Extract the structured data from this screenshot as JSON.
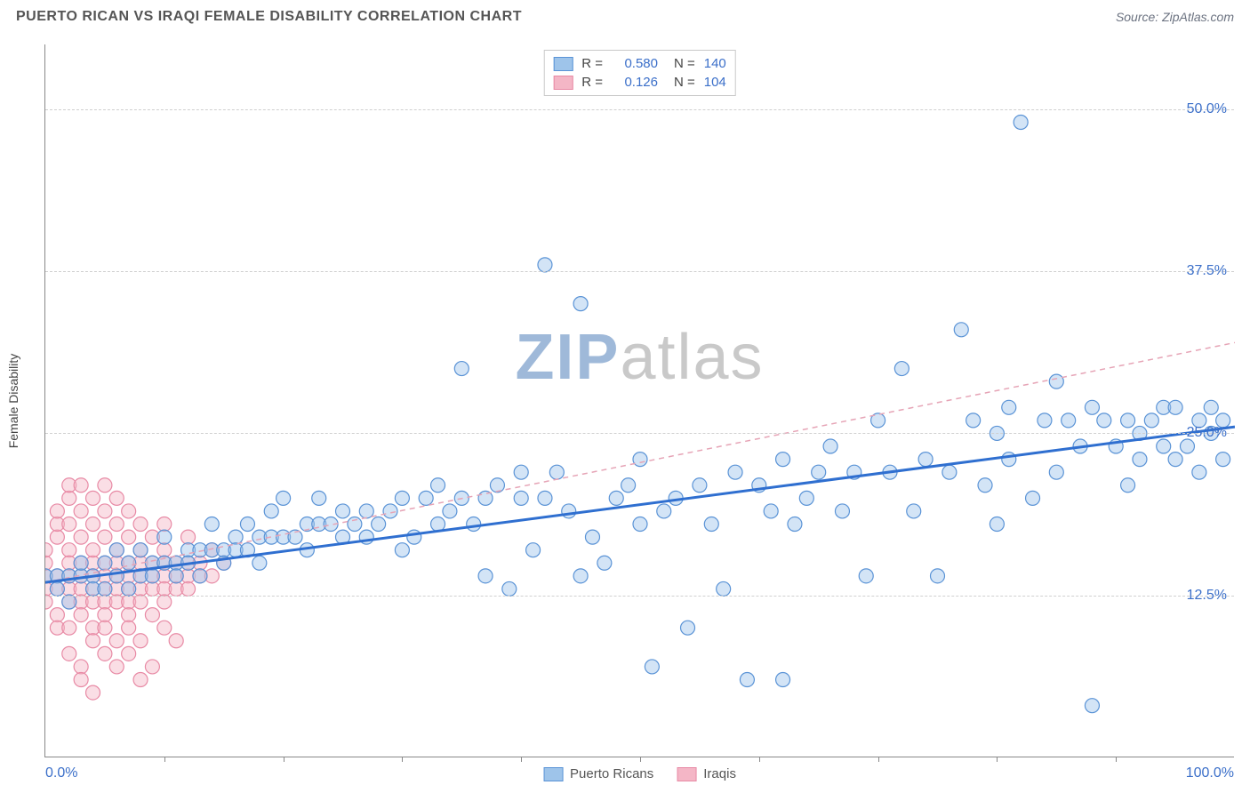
{
  "title": "PUERTO RICAN VS IRAQI FEMALE DISABILITY CORRELATION CHART",
  "source_prefix": "Source: ",
  "source_name": "ZipAtlas.com",
  "ylabel": "Female Disability",
  "watermark_a": "ZIP",
  "watermark_b": "atlas",
  "watermark_color_a": "#9fb9d9",
  "watermark_color_b": "#c9c9c9",
  "chart": {
    "type": "scatter",
    "xlim": [
      0,
      100
    ],
    "ylim": [
      0,
      55
    ],
    "background_color": "#ffffff",
    "grid_color": "#d0d0d0",
    "marker_radius": 8,
    "marker_opacity": 0.45,
    "yticks": [
      {
        "v": 12.5,
        "label": "12.5%"
      },
      {
        "v": 25.0,
        "label": "25.0%"
      },
      {
        "v": 37.5,
        "label": "37.5%"
      },
      {
        "v": 50.0,
        "label": "50.0%"
      }
    ],
    "ytick_color": "#3b6fc9",
    "xticks_minor": [
      10,
      20,
      30,
      40,
      50,
      60,
      70,
      80,
      90
    ],
    "xticks_labeled": [
      {
        "v": 0,
        "label": "0.0%",
        "align": "left"
      },
      {
        "v": 100,
        "label": "100.0%",
        "align": "right"
      }
    ],
    "xtick_color": "#3b6fc9",
    "series": [
      {
        "name": "Puerto Ricans",
        "color_fill": "#9ec4ea",
        "color_stroke": "#5a93d6",
        "regression": {
          "x1": 0,
          "y1": 13.5,
          "x2": 100,
          "y2": 25.5,
          "stroke": "#2f6fd0",
          "width": 3,
          "dash": "none"
        },
        "r": "0.580",
        "n": "140",
        "points": [
          [
            0,
            14
          ],
          [
            1,
            14
          ],
          [
            1,
            13
          ],
          [
            2,
            14
          ],
          [
            2,
            12
          ],
          [
            3,
            14
          ],
          [
            3,
            15
          ],
          [
            4,
            14
          ],
          [
            4,
            13
          ],
          [
            5,
            15
          ],
          [
            5,
            13
          ],
          [
            6,
            14
          ],
          [
            6,
            16
          ],
          [
            7,
            15
          ],
          [
            7,
            13
          ],
          [
            8,
            14
          ],
          [
            8,
            16
          ],
          [
            9,
            15
          ],
          [
            9,
            14
          ],
          [
            10,
            15
          ],
          [
            10,
            17
          ],
          [
            11,
            15
          ],
          [
            11,
            14
          ],
          [
            12,
            16
          ],
          [
            12,
            15
          ],
          [
            13,
            16
          ],
          [
            13,
            14
          ],
          [
            14,
            16
          ],
          [
            14,
            18
          ],
          [
            15,
            16
          ],
          [
            15,
            15
          ],
          [
            16,
            17
          ],
          [
            16,
            16
          ],
          [
            17,
            16
          ],
          [
            17,
            18
          ],
          [
            18,
            17
          ],
          [
            18,
            15
          ],
          [
            19,
            17
          ],
          [
            19,
            19
          ],
          [
            20,
            17
          ],
          [
            20,
            20
          ],
          [
            21,
            17
          ],
          [
            22,
            18
          ],
          [
            22,
            16
          ],
          [
            23,
            18
          ],
          [
            23,
            20
          ],
          [
            24,
            18
          ],
          [
            25,
            17
          ],
          [
            25,
            19
          ],
          [
            26,
            18
          ],
          [
            27,
            19
          ],
          [
            27,
            17
          ],
          [
            28,
            18
          ],
          [
            29,
            19
          ],
          [
            30,
            20
          ],
          [
            30,
            16
          ],
          [
            31,
            17
          ],
          [
            32,
            20
          ],
          [
            33,
            21
          ],
          [
            33,
            18
          ],
          [
            34,
            19
          ],
          [
            35,
            20
          ],
          [
            35,
            30
          ],
          [
            36,
            18
          ],
          [
            37,
            20
          ],
          [
            37,
            14
          ],
          [
            38,
            21
          ],
          [
            39,
            13
          ],
          [
            40,
            20
          ],
          [
            40,
            22
          ],
          [
            41,
            16
          ],
          [
            42,
            20
          ],
          [
            42,
            38
          ],
          [
            43,
            22
          ],
          [
            44,
            19
          ],
          [
            45,
            35
          ],
          [
            45,
            14
          ],
          [
            46,
            17
          ],
          [
            47,
            15
          ],
          [
            48,
            20
          ],
          [
            49,
            21
          ],
          [
            50,
            23
          ],
          [
            50,
            18
          ],
          [
            51,
            7
          ],
          [
            52,
            19
          ],
          [
            53,
            20
          ],
          [
            54,
            10
          ],
          [
            55,
            21
          ],
          [
            56,
            18
          ],
          [
            57,
            13
          ],
          [
            58,
            22
          ],
          [
            59,
            6
          ],
          [
            60,
            21
          ],
          [
            61,
            19
          ],
          [
            62,
            6
          ],
          [
            62,
            23
          ],
          [
            63,
            18
          ],
          [
            64,
            20
          ],
          [
            65,
            22
          ],
          [
            66,
            24
          ],
          [
            67,
            19
          ],
          [
            68,
            22
          ],
          [
            69,
            14
          ],
          [
            70,
            26
          ],
          [
            71,
            22
          ],
          [
            72,
            30
          ],
          [
            73,
            19
          ],
          [
            74,
            23
          ],
          [
            75,
            14
          ],
          [
            76,
            22
          ],
          [
            77,
            33
          ],
          [
            78,
            26
          ],
          [
            79,
            21
          ],
          [
            80,
            25
          ],
          [
            80,
            18
          ],
          [
            81,
            23
          ],
          [
            81,
            27
          ],
          [
            82,
            49
          ],
          [
            83,
            20
          ],
          [
            84,
            26
          ],
          [
            85,
            29
          ],
          [
            85,
            22
          ],
          [
            86,
            26
          ],
          [
            87,
            24
          ],
          [
            88,
            4
          ],
          [
            88,
            27
          ],
          [
            89,
            26
          ],
          [
            90,
            24
          ],
          [
            91,
            26
          ],
          [
            91,
            21
          ],
          [
            92,
            25
          ],
          [
            92,
            23
          ],
          [
            93,
            26
          ],
          [
            94,
            27
          ],
          [
            94,
            24
          ],
          [
            95,
            23
          ],
          [
            95,
            27
          ],
          [
            96,
            24
          ],
          [
            97,
            26
          ],
          [
            97,
            22
          ],
          [
            98,
            25
          ],
          [
            98,
            27
          ],
          [
            99,
            23
          ],
          [
            99,
            26
          ]
        ]
      },
      {
        "name": "Iraqis",
        "color_fill": "#f4b6c6",
        "color_stroke": "#e88aa5",
        "regression": {
          "x1": 0,
          "y1": 13.5,
          "x2": 100,
          "y2": 32.0,
          "stroke": "#e6a4b6",
          "width": 1.5,
          "dash": "6 5"
        },
        "r": "0.126",
        "n": "104",
        "points": [
          [
            0,
            14
          ],
          [
            0,
            13
          ],
          [
            0,
            15
          ],
          [
            0,
            12
          ],
          [
            0,
            16
          ],
          [
            1,
            14
          ],
          [
            1,
            11
          ],
          [
            1,
            13
          ],
          [
            1,
            17
          ],
          [
            1,
            10
          ],
          [
            1,
            18
          ],
          [
            1,
            19
          ],
          [
            2,
            14
          ],
          [
            2,
            13
          ],
          [
            2,
            12
          ],
          [
            2,
            16
          ],
          [
            2,
            15
          ],
          [
            2,
            10
          ],
          [
            2,
            18
          ],
          [
            2,
            8
          ],
          [
            2,
            20
          ],
          [
            2,
            21
          ],
          [
            3,
            14
          ],
          [
            3,
            13
          ],
          [
            3,
            15
          ],
          [
            3,
            12
          ],
          [
            3,
            17
          ],
          [
            3,
            11
          ],
          [
            3,
            19
          ],
          [
            3,
            7
          ],
          [
            3,
            6
          ],
          [
            3,
            21
          ],
          [
            4,
            14
          ],
          [
            4,
            13
          ],
          [
            4,
            15
          ],
          [
            4,
            12
          ],
          [
            4,
            16
          ],
          [
            4,
            18
          ],
          [
            4,
            10
          ],
          [
            4,
            9
          ],
          [
            4,
            20
          ],
          [
            4,
            5
          ],
          [
            5,
            14
          ],
          [
            5,
            13
          ],
          [
            5,
            15
          ],
          [
            5,
            12
          ],
          [
            5,
            17
          ],
          [
            5,
            11
          ],
          [
            5,
            8
          ],
          [
            5,
            10
          ],
          [
            5,
            19
          ],
          [
            5,
            21
          ],
          [
            6,
            14
          ],
          [
            6,
            13
          ],
          [
            6,
            15
          ],
          [
            6,
            12
          ],
          [
            6,
            16
          ],
          [
            6,
            9
          ],
          [
            6,
            18
          ],
          [
            6,
            20
          ],
          [
            6,
            7
          ],
          [
            7,
            14
          ],
          [
            7,
            13
          ],
          [
            7,
            15
          ],
          [
            7,
            12
          ],
          [
            7,
            17
          ],
          [
            7,
            11
          ],
          [
            7,
            10
          ],
          [
            7,
            19
          ],
          [
            7,
            8
          ],
          [
            8,
            14
          ],
          [
            8,
            13
          ],
          [
            8,
            15
          ],
          [
            8,
            12
          ],
          [
            8,
            16
          ],
          [
            8,
            9
          ],
          [
            8,
            6
          ],
          [
            8,
            18
          ],
          [
            9,
            14
          ],
          [
            9,
            13
          ],
          [
            9,
            15
          ],
          [
            9,
            17
          ],
          [
            9,
            11
          ],
          [
            9,
            7
          ],
          [
            10,
            14
          ],
          [
            10,
            13
          ],
          [
            10,
            15
          ],
          [
            10,
            12
          ],
          [
            10,
            16
          ],
          [
            10,
            10
          ],
          [
            10,
            18
          ],
          [
            11,
            14
          ],
          [
            11,
            13
          ],
          [
            11,
            15
          ],
          [
            11,
            9
          ],
          [
            12,
            14
          ],
          [
            12,
            13
          ],
          [
            12,
            15
          ],
          [
            12,
            17
          ],
          [
            13,
            14
          ],
          [
            13,
            15
          ],
          [
            14,
            14
          ],
          [
            14,
            16
          ],
          [
            15,
            15
          ]
        ]
      }
    ]
  },
  "legend_top_labels": {
    "R": "R =",
    "N": "N ="
  },
  "legend_bottom": [
    {
      "label": "Puerto Ricans"
    },
    {
      "label": "Iraqis"
    }
  ]
}
